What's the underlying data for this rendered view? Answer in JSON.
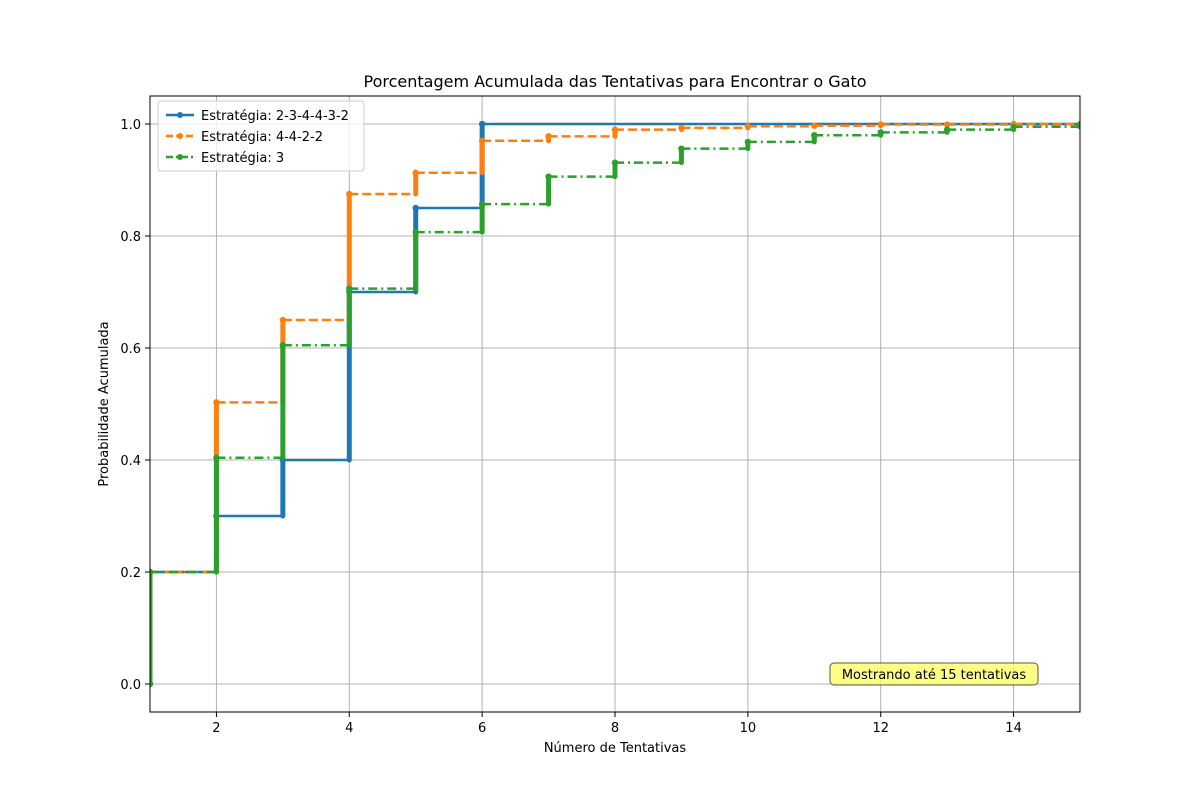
{
  "chart_data": {
    "type": "line",
    "title": "Porcentagem Acumulada das Tentativas para Encontrar o Gato",
    "xlabel": "Número de Tentativas",
    "ylabel": "Probabilidade Acumulada",
    "xlim": [
      1,
      15
    ],
    "ylim": [
      -0.05,
      1.05
    ],
    "xticks": [
      2,
      4,
      6,
      8,
      10,
      12,
      14
    ],
    "yticks": [
      0.0,
      0.2,
      0.4,
      0.6,
      0.8,
      1.0
    ],
    "xtick_labels": [
      "2",
      "4",
      "6",
      "8",
      "10",
      "12",
      "14"
    ],
    "ytick_labels": [
      "0.0",
      "0.2",
      "0.4",
      "0.6",
      "0.8",
      "1.0"
    ],
    "grid": true,
    "legend_position": "top-left",
    "annotation": "Mostrando até 15 tentativas",
    "series": [
      {
        "name": "Estratégia: 2-3-4-4-3-2",
        "color": "#1f77b4",
        "linestyle": "solid",
        "x": [
          1,
          2,
          3,
          4,
          5,
          6
        ],
        "y": [
          0.2,
          0.3,
          0.4,
          0.7,
          0.85,
          1.0
        ]
      },
      {
        "name": "Estratégia: 4-4-2-2",
        "color": "#ff7f0e",
        "linestyle": "dashed",
        "x": [
          1,
          2,
          3,
          4,
          5,
          6,
          7,
          8,
          9,
          10,
          11,
          12,
          13,
          14,
          15
        ],
        "y": [
          0.2,
          0.503,
          0.65,
          0.875,
          0.913,
          0.97,
          0.978,
          0.99,
          0.993,
          0.996,
          0.997,
          0.999,
          0.999,
          1.0,
          1.0
        ]
      },
      {
        "name": "Estratégia: 3",
        "color": "#2ca02c",
        "linestyle": "dashdot",
        "x": [
          1,
          2,
          3,
          4,
          5,
          6,
          7,
          8,
          9,
          10,
          11,
          12,
          13,
          14,
          15
        ],
        "y": [
          0.2,
          0.404,
          0.605,
          0.706,
          0.807,
          0.857,
          0.906,
          0.931,
          0.956,
          0.968,
          0.98,
          0.985,
          0.99,
          0.995,
          0.998
        ]
      }
    ]
  }
}
